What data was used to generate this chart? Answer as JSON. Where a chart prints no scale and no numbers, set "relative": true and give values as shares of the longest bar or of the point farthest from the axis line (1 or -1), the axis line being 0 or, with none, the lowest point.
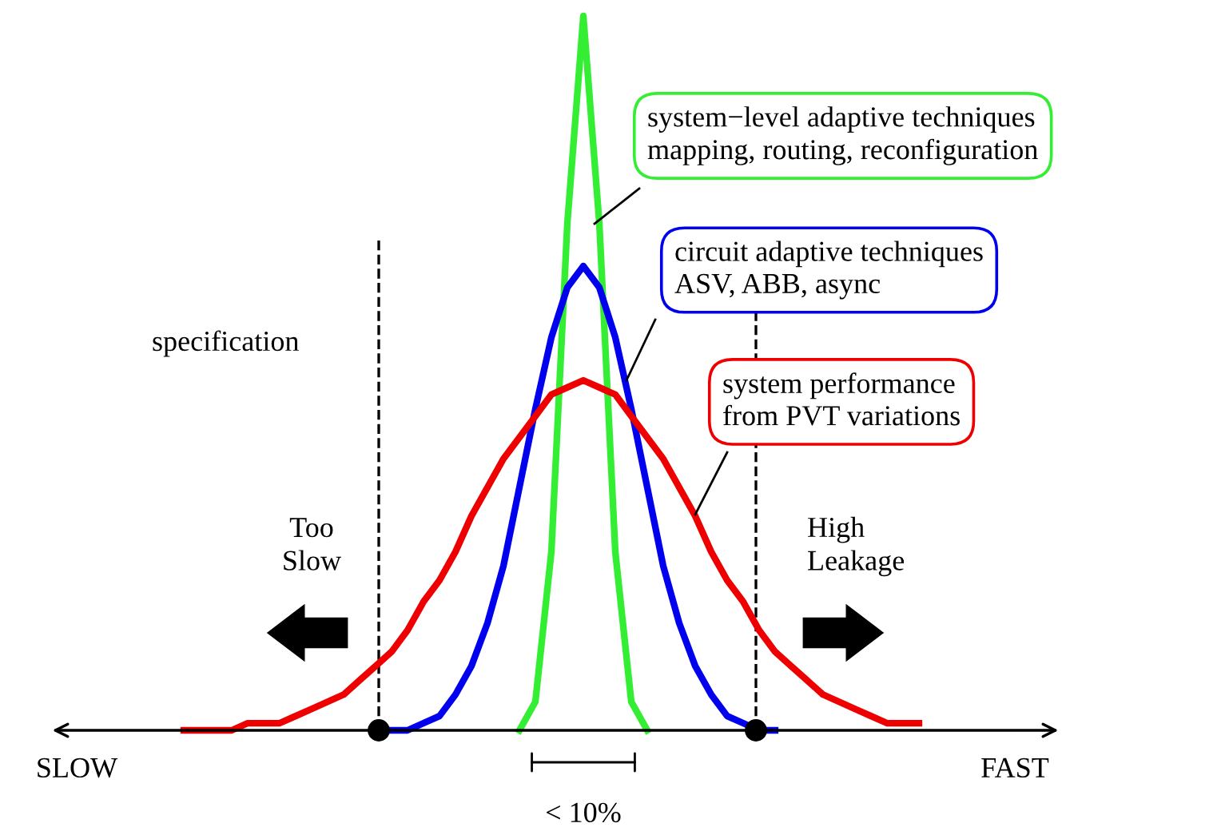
{
  "chart_data": {
    "type": "line",
    "relative": true,
    "categories": [
      null,
      null,
      null,
      null,
      null,
      null,
      null,
      null,
      null,
      null,
      null,
      null,
      null,
      null,
      null,
      null,
      null,
      null,
      null,
      null,
      null,
      null,
      null,
      null,
      null,
      null,
      null,
      null,
      null,
      null,
      null,
      null,
      null,
      null,
      null,
      null,
      null,
      null,
      null,
      null,
      null,
      null,
      null,
      null,
      null,
      null,
      null
    ],
    "series": [
      {
        "name": "system−level adaptive techniques\nmapping, routing, reconfiguration",
        "color": "#33ee33",
        "values": [
          null,
          null,
          null,
          null,
          null,
          null,
          null,
          null,
          null,
          null,
          null,
          null,
          null,
          null,
          null,
          null,
          null,
          null,
          null,
          null,
          null,
          0.0,
          0.04,
          0.25,
          0.71,
          1.0,
          0.71,
          0.25,
          0.04,
          0.0,
          null,
          null,
          null,
          null,
          null,
          null,
          null,
          null,
          null,
          null,
          null,
          null,
          null,
          null,
          null,
          null,
          null
        ]
      },
      {
        "name": "circuit adaptive techniques\nASV, ABB, async",
        "color": "#0000ee",
        "values": [
          null,
          null,
          null,
          null,
          null,
          null,
          null,
          null,
          null,
          null,
          null,
          null,
          null,
          0.0,
          0.0,
          0.01,
          0.02,
          0.05,
          0.09,
          0.15,
          0.23,
          0.34,
          0.45,
          0.55,
          0.62,
          0.65,
          0.62,
          0.55,
          0.45,
          0.34,
          0.23,
          0.15,
          0.09,
          0.05,
          0.02,
          0.01,
          0.0,
          0.0,
          null,
          null,
          null,
          null,
          null,
          null,
          null,
          null,
          null
        ]
      },
      {
        "name": "system performance\nfrom PVT variations",
        "color": "#ee0000",
        "values": [
          0.0,
          0.0,
          0.0,
          0.0,
          0.01,
          0.01,
          0.01,
          0.02,
          0.03,
          0.04,
          0.05,
          0.07,
          0.09,
          0.11,
          0.14,
          0.18,
          0.21,
          0.25,
          0.3,
          0.34,
          0.38,
          0.41,
          0.44,
          0.47,
          0.48,
          0.49,
          0.48,
          0.47,
          0.44,
          0.41,
          0.38,
          0.34,
          0.3,
          0.25,
          0.21,
          0.18,
          0.14,
          0.11,
          0.09,
          0.07,
          0.05,
          0.04,
          0.03,
          0.02,
          0.01,
          0.01,
          0.01
        ]
      }
    ],
    "annotations": [
      "SLOW",
      "FAST",
      "< 10%",
      "Too\nSlow",
      "High\nLeakage",
      "specification"
    ],
    "line_style": "solid",
    "legend": false
  }
}
